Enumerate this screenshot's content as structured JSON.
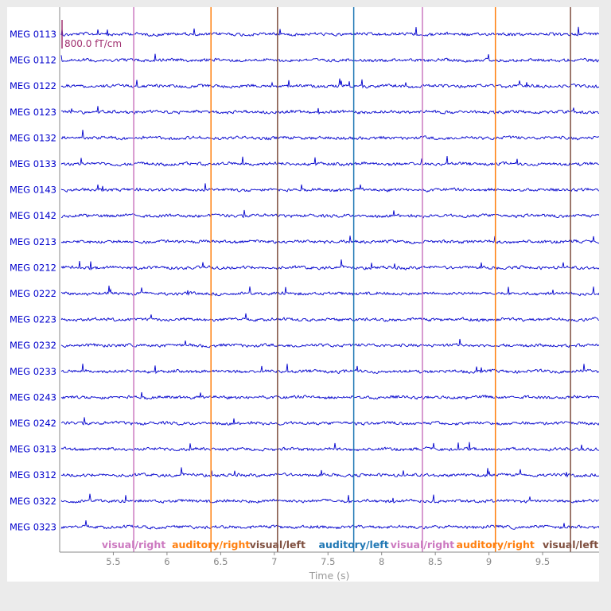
{
  "chart_data": {
    "type": "line",
    "xlabel": "Time (s)",
    "xlim": [
      5.0,
      10.0
    ],
    "xticks": [
      {
        "label": "5.5",
        "value": 5.5
      },
      {
        "label": "6",
        "value": 6.0
      },
      {
        "label": "6.5",
        "value": 6.5
      },
      {
        "label": "7",
        "value": 7.0
      },
      {
        "label": "7.5",
        "value": 7.5
      },
      {
        "label": "8",
        "value": 8.0
      },
      {
        "label": "8.5",
        "value": 8.5
      },
      {
        "label": "9",
        "value": 9.0
      },
      {
        "label": "9.5",
        "value": 9.5
      }
    ],
    "channels": [
      "MEG 0113",
      "MEG 0112",
      "MEG 0122",
      "MEG 0123",
      "MEG 0132",
      "MEG 0133",
      "MEG 0143",
      "MEG 0142",
      "MEG 0213",
      "MEG 0212",
      "MEG 0222",
      "MEG 0223",
      "MEG 0232",
      "MEG 0233",
      "MEG 0243",
      "MEG 0242",
      "MEG 0313",
      "MEG 0312",
      "MEG 0322",
      "MEG 0323"
    ],
    "scale_bar": {
      "label": "800.0 fT/cm",
      "color": "#a03070"
    },
    "trace_color": "#0000cc",
    "events": [
      {
        "time": 5.69,
        "label": "visual/right",
        "color": "#cc79c0"
      },
      {
        "time": 6.41,
        "label": "auditory/right",
        "color": "#ff7f0e"
      },
      {
        "time": 7.03,
        "label": "visual/left",
        "color": "#7f4f3f"
      },
      {
        "time": 7.74,
        "label": "auditory/left",
        "color": "#1f77b4"
      },
      {
        "time": 8.38,
        "label": "visual/right",
        "color": "#cc79c0"
      },
      {
        "time": 9.06,
        "label": "auditory/right",
        "color": "#ff7f0e"
      },
      {
        "time": 9.76,
        "label": "visual/left",
        "color": "#7f4f3f"
      }
    ],
    "channel_label_color": "#0000cc",
    "axis_color": "#888888"
  }
}
